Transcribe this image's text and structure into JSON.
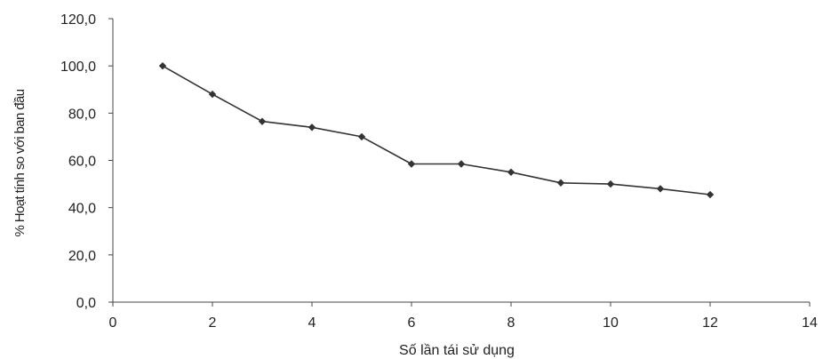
{
  "chart_data": {
    "type": "line",
    "title": "",
    "xlabel": "Số lần tái sử dụng",
    "ylabel": "% Hoạt tính so với ban đầu",
    "xlim": [
      0,
      14
    ],
    "ylim": [
      0,
      120
    ],
    "x_ticks": [
      "0",
      "2",
      "4",
      "6",
      "8",
      "10",
      "12",
      "14"
    ],
    "y_ticks": [
      "0,0",
      "20,0",
      "40,0",
      "60,0",
      "80,0",
      "100,0",
      "120,0"
    ],
    "grid": false,
    "legend": "none",
    "line_color": "#333333",
    "series": [
      {
        "x": [
          1,
          2,
          3,
          4,
          5,
          6,
          7,
          8,
          9,
          10,
          11,
          12
        ],
        "values": [
          100.0,
          88.0,
          76.5,
          74.0,
          70.0,
          58.5,
          58.5,
          55.0,
          50.5,
          50.0,
          48.0,
          45.5
        ]
      }
    ]
  }
}
